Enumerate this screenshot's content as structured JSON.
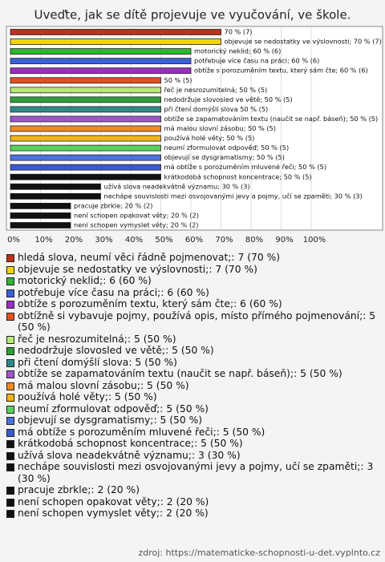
{
  "chart_data": {
    "type": "bar",
    "orientation": "horizontal",
    "title": "Uveďte, jak se dítě projevuje ve vyučování, ve škole.",
    "values": [
      70,
      70,
      60,
      60,
      60,
      50,
      50,
      50,
      50,
      50,
      50,
      50,
      50,
      50,
      50,
      50,
      30,
      30,
      20,
      20,
      20
    ],
    "value_labels": [
      "70 % (7)",
      "objevuje se nedostatky ve výslovnosti; 70 % (7)",
      "motorický neklid; 60 % (6)",
      "potřebuje více času na práci; 60 % (6)",
      "obtíže s porozuměním textu, který sám čte; 60 % (6)",
      "50 % (5)",
      "řeč je nesrozumitelná; 50 % (5)",
      "nedodržuje slovosled ve větě; 50 % (5)",
      "při čtení domýšlí slova 50 % (5)",
      "obtíže se zapamatováním textu (naučit se např. báseň); 50 % (5)",
      "má malou slovní zásobu; 50 % (5)",
      "používá holé věty; 50 % (5)",
      "neumí zformulovat odpověď; 50 % (5)",
      "objevují se dysgramatismy; 50 % (5)",
      "má obtíže s porozuměním mluvené řeči; 50 % (5)",
      "krátkodobá schopnost koncentrace; 50 % (5)",
      "užívá slova neadekvátně významu; 30 % (3)",
      "nechápe souvislosti mezi osvojovanými jevy a pojmy, učí se zpaměti; 30 % (3)",
      "pracuje zbrkle; 20 % (2)",
      "není schopen opakovat věty; 20 % (2)",
      "není schopen vymyslet věty; 20 % (2)"
    ],
    "legend": [
      "hledá slova, neumí věci řádně pojmenovat;: 7 (70 %)",
      "objevuje se nedostatky ve výslovnosti;: 7 (70 %)",
      "motorický neklid;: 6 (60 %)",
      "potřebuje více času na práci;: 6 (60 %)",
      "obtíže s porozuměním textu, který sám čte;: 6 (60 %)",
      "obtížně si vybavuje pojmy, používá opis, místo přímého pojmenování;: 5 (50 %)",
      "řeč je nesrozumitelná;: 5 (50 %)",
      "nedodržuje slovosled ve větě;: 5 (50 %)",
      "při čtení domýšlí slova: 5 (50 %)",
      "obtíže se zapamatováním textu (naučit se např. báseň);: 5 (50 %)",
      "má malou slovní zásobu;: 5 (50 %)",
      "používá holé věty;: 5 (50 %)",
      "neumí zformulovat odpověď;: 5 (50 %)",
      "objevují se dysgramatismy;: 5 (50 %)",
      "má obtíže s porozuměním mluvené řeči;: 5 (50 %)",
      "krátkodobá schopnost koncentrace;: 5 (50 %)",
      "užívá slova neadekvátně významu;: 3 (30 %)",
      "nechápe souvislosti mezi osvojovanými jevy a pojmy, učí se zpaměti;: 3 (30 %)",
      "pracuje zbrkle;: 2 (20 %)",
      "není schopen opakovat věty;: 2 (20 %)",
      "není schopen vymyslet věty;: 2 (20 %)"
    ],
    "colors": [
      "#c0301c",
      "#f2d40c",
      "#2fb52f",
      "#3a62d8",
      "#9b2fc0",
      "#e2501e",
      "#b7e878",
      "#2f9e3a",
      "#2f8a8a",
      "#a057c8",
      "#f08a1e",
      "#f2b41e",
      "#5ad25a",
      "#4a72e0",
      "#3a5ad0",
      "#111111",
      "#111111",
      "#111111",
      "#111111",
      "#111111",
      "#111111"
    ],
    "xlim": [
      0,
      100
    ],
    "xticks": [
      {
        "value": 0,
        "label": "0%"
      },
      {
        "value": 10,
        "label": "10%"
      },
      {
        "value": 20,
        "label": "20%"
      },
      {
        "value": 30,
        "label": "30%"
      },
      {
        "value": 40,
        "label": "40%"
      },
      {
        "value": 50,
        "label": "50%"
      },
      {
        "value": 60,
        "label": "60%"
      },
      {
        "value": 70,
        "label": "70%"
      },
      {
        "value": 80,
        "label": "80%"
      },
      {
        "value": 90,
        "label": "90%"
      },
      {
        "value": 100,
        "label": "100%"
      }
    ],
    "grid": true,
    "source": "zdroj: https://matematicke-schopnosti-u-det.vyplnto.cz"
  }
}
